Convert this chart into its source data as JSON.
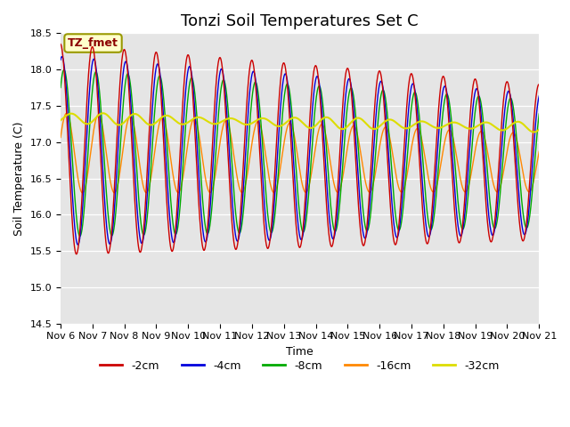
{
  "title": "Tonzi Soil Temperatures Set C",
  "xlabel": "Time",
  "ylabel": "Soil Temperature (C)",
  "annotation": "TZ_fmet",
  "ylim": [
    14.5,
    18.5
  ],
  "colors": {
    "-2cm": "#cc0000",
    "-4cm": "#0000dd",
    "-8cm": "#00aa00",
    "-16cm": "#ff8800",
    "-32cm": "#dddd00"
  },
  "legend_labels": [
    "-2cm",
    "-4cm",
    "-8cm",
    "-16cm",
    "-32cm"
  ],
  "background_color": "#e5e5e5",
  "title_fontsize": 13,
  "axis_fontsize": 9,
  "tick_fontsize": 8,
  "x_tick_labels": [
    "Nov 6",
    "Nov 7",
    "Nov 8",
    "Nov 9",
    "Nov 10",
    "Nov 11",
    "Nov 12",
    "Nov 13",
    "Nov 14",
    "Nov 15",
    "Nov 16",
    "Nov 17",
    "Nov 18",
    "Nov 19",
    "Nov 20",
    "Nov 21"
  ]
}
